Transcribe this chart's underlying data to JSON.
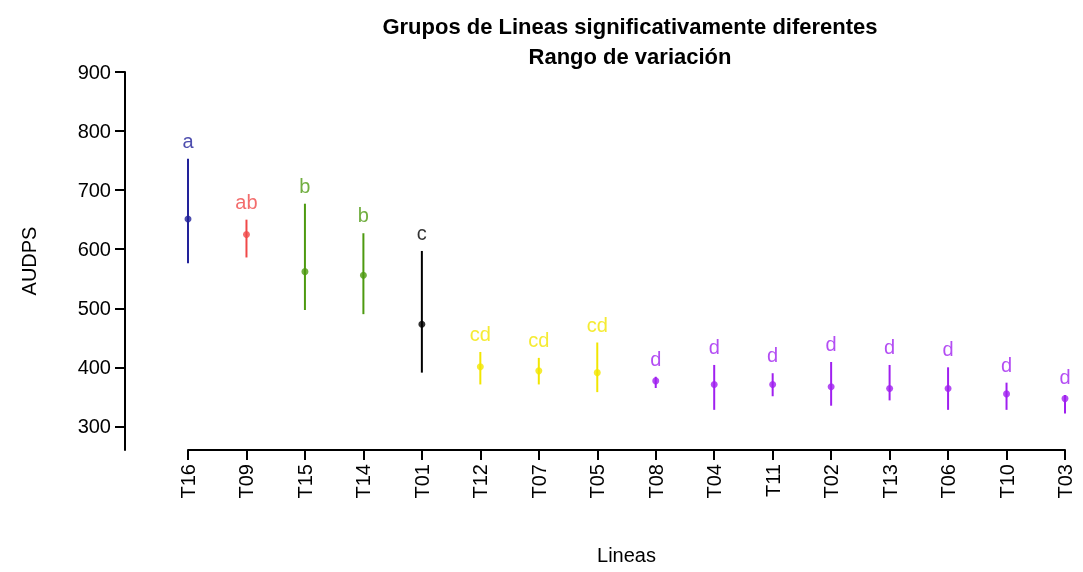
{
  "chart_data": {
    "type": "scatter",
    "title": "Grupos de Lineas significativamente diferentes\nRango de variación",
    "xlabel": "Lineas",
    "ylabel": "AUDPS",
    "categories": [
      "T16",
      "T09",
      "T15",
      "T14",
      "T01",
      "T12",
      "T07",
      "T05",
      "T08",
      "T04",
      "T11",
      "T02",
      "T13",
      "T06",
      "T10",
      "T03"
    ],
    "values": [
      651,
      625,
      562,
      556,
      473,
      401,
      394,
      391,
      377,
      371,
      371,
      367,
      364,
      364,
      355,
      347
    ],
    "errors": [
      [
        576,
        753
      ],
      [
        586,
        650
      ],
      [
        497,
        677
      ],
      [
        490,
        627
      ],
      [
        391,
        597
      ],
      [
        371,
        426
      ],
      [
        371,
        416
      ],
      [
        358,
        442
      ],
      [
        365,
        384
      ],
      [
        328,
        404
      ],
      [
        351,
        390
      ],
      [
        335,
        409
      ],
      [
        344,
        404
      ],
      [
        328,
        400
      ],
      [
        328,
        374
      ],
      [
        322,
        353
      ]
    ],
    "colors": [
      "#22229a",
      "#f04848",
      "#4d9a10",
      "#4d9a10",
      "#000000",
      "#f2e600",
      "#f2e600",
      "#f2e600",
      "#a020f0",
      "#a020f0",
      "#a020f0",
      "#a020f0",
      "#a020f0",
      "#a020f0",
      "#a020f0",
      "#a020f0"
    ],
    "annotations": [
      {
        "text": "a",
        "x": "T16",
        "y": 753
      },
      {
        "text": "ab",
        "x": "T09",
        "y": 650
      },
      {
        "text": "b",
        "x": "T15",
        "y": 677
      },
      {
        "text": "b",
        "x": "T14",
        "y": 627
      },
      {
        "text": "c",
        "x": "T01",
        "y": 597
      },
      {
        "text": "cd",
        "x": "T12",
        "y": 426
      },
      {
        "text": "cd",
        "x": "T07",
        "y": 416
      },
      {
        "text": "cd",
        "x": "T05",
        "y": 442
      },
      {
        "text": "d",
        "x": "T08",
        "y": 384
      },
      {
        "text": "d",
        "x": "T04",
        "y": 404
      },
      {
        "text": "d",
        "x": "T11",
        "y": 390
      },
      {
        "text": "d",
        "x": "T02",
        "y": 409
      },
      {
        "text": "d",
        "x": "T13",
        "y": 404
      },
      {
        "text": "d",
        "x": "T06",
        "y": 400
      },
      {
        "text": "d",
        "x": "T10",
        "y": 374
      },
      {
        "text": "d",
        "x": "T03",
        "y": 353
      }
    ],
    "ylim": [
      260,
      900
    ],
    "yticks": [
      300,
      400,
      500,
      600,
      700,
      800,
      900
    ],
    "grid": false,
    "marker": "circle"
  }
}
